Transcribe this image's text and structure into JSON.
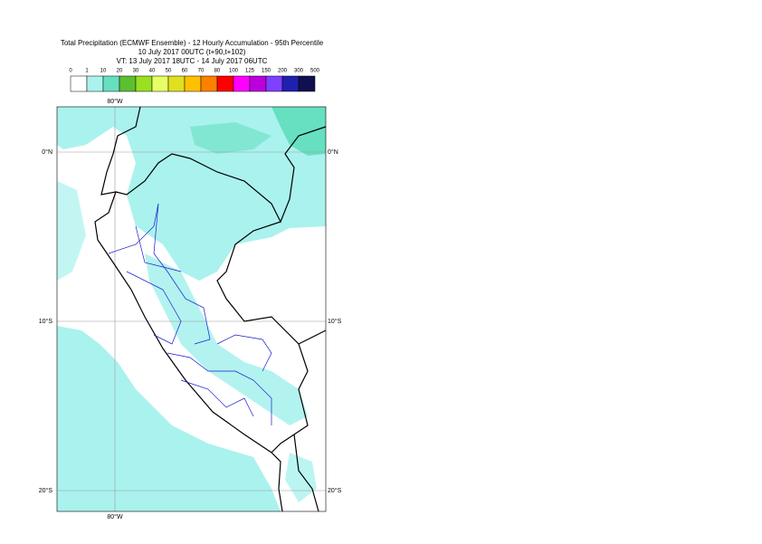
{
  "header": {
    "title": "Total Precipitation (ECMWF Ensemble) - 12 Hourly Accumulation - 95th Percentile",
    "base_time": "10 July 2017 00UTC (t+90,t+102)",
    "valid_time": "VT: 13 July 2017 18UTC - 14 July 2017 06UTC"
  },
  "legend": {
    "labels": [
      "0",
      "1",
      "10",
      "20",
      "30",
      "40",
      "50",
      "60",
      "70",
      "80",
      "100",
      "125",
      "150",
      "200",
      "300",
      "500"
    ],
    "colors": [
      "#ffffff",
      "#aaf2ee",
      "#66e0c0",
      "#5cbf30",
      "#99e020",
      "#e6ff66",
      "#e0e020",
      "#ffc000",
      "#ff8000",
      "#ff0000",
      "#ff00ff",
      "#bb00dd",
      "#8040ff",
      "#2020b0",
      "#101050"
    ]
  },
  "map": {
    "lon_label_top": "80°W",
    "lon_label_bottom": "80°W",
    "lat_labels_left": [
      "0°N",
      "10°S",
      "20°S"
    ],
    "lat_labels_right": [
      "0°N",
      "10°S",
      "20°S"
    ]
  }
}
